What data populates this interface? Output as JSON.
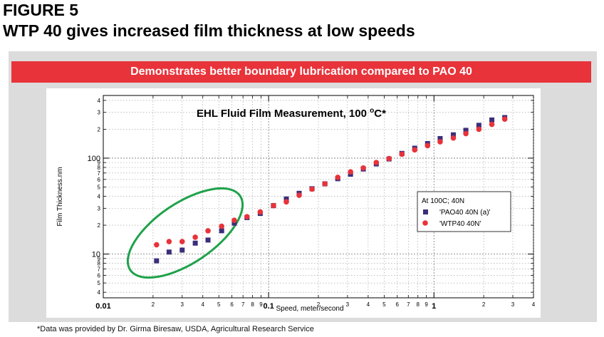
{
  "figure": {
    "label": "FIGURE 5",
    "title": "WTP 40 gives increased film thickness at low speeds",
    "banner": "Demonstrates better boundary lubrication compared to PAO 40",
    "footnote": "*Data was provided by Dr. Girma Biresaw, USDA, Agricultural Research Service"
  },
  "colors": {
    "banner_bg": "#e8333a",
    "pao_series": "#3a2f7a",
    "wtp_series": "#e8333a",
    "highlight_ellipse": "#1fa24a"
  },
  "chart_data": {
    "type": "scatter",
    "title": "EHL Fluid Film Measurement, 100 °C*",
    "title_main": "EHL Fluid Film Measurement, 100 ",
    "title_sup": "o",
    "title_end": "C*",
    "xlabel": "Speed, meter/second",
    "ylabel": "Film Thickness.nm",
    "xscale": "log",
    "yscale": "log",
    "xlim": [
      0.01,
      4
    ],
    "ylim": [
      3.5,
      450
    ],
    "x_major_ticks": [
      {
        "v": 0.01,
        "label": "0.01"
      },
      {
        "v": 0.1,
        "label": "0.1"
      },
      {
        "v": 1,
        "label": "1"
      }
    ],
    "x_minor_ticks": [
      {
        "v": 0.02,
        "label": "2"
      },
      {
        "v": 0.03,
        "label": "3"
      },
      {
        "v": 0.04,
        "label": "4"
      },
      {
        "v": 0.05,
        "label": "5"
      },
      {
        "v": 0.06,
        "label": "6"
      },
      {
        "v": 0.07,
        "label": "7"
      },
      {
        "v": 0.08,
        "label": "8"
      },
      {
        "v": 0.09,
        "label": "9"
      },
      {
        "v": 0.2,
        "label": "2"
      },
      {
        "v": 0.3,
        "label": "3"
      },
      {
        "v": 0.4,
        "label": "4"
      },
      {
        "v": 0.5,
        "label": "5"
      },
      {
        "v": 0.6,
        "label": "6"
      },
      {
        "v": 0.7,
        "label": "7"
      },
      {
        "v": 0.8,
        "label": "8"
      },
      {
        "v": 0.9,
        "label": "9"
      },
      {
        "v": 2,
        "label": "2"
      },
      {
        "v": 3,
        "label": "3"
      },
      {
        "v": 4,
        "label": "4"
      }
    ],
    "y_major_ticks": [
      {
        "v": 10,
        "label": "10"
      },
      {
        "v": 100,
        "label": "100"
      }
    ],
    "y_minor_ticks": [
      {
        "v": 4,
        "label": "4"
      },
      {
        "v": 5,
        "label": "5"
      },
      {
        "v": 6,
        "label": "6"
      },
      {
        "v": 7,
        "label": "7"
      },
      {
        "v": 8,
        "label": "8"
      },
      {
        "v": 9,
        "label": "9"
      },
      {
        "v": 20,
        "label": "2"
      },
      {
        "v": 30,
        "label": "3"
      },
      {
        "v": 40,
        "label": "4"
      },
      {
        "v": 50,
        "label": "5"
      },
      {
        "v": 60,
        "label": "6"
      },
      {
        "v": 70,
        "label": "7"
      },
      {
        "v": 80,
        "label": "8"
      },
      {
        "v": 90,
        "label": "9"
      },
      {
        "v": 200,
        "label": "2"
      },
      {
        "v": 300,
        "label": "3"
      },
      {
        "v": 400,
        "label": "4"
      }
    ],
    "legend": {
      "title": "At 100C; 40N",
      "position": "center-right"
    },
    "series": [
      {
        "name": "'PAO40 40N (a)'",
        "marker": "square",
        "color": "#3a2f7a",
        "x": [
          0.021,
          0.025,
          0.03,
          0.036,
          0.043,
          0.052,
          0.062,
          0.074,
          0.089,
          0.107,
          0.128,
          0.153,
          0.183,
          0.219,
          0.262,
          0.313,
          0.374,
          0.448,
          0.535,
          0.64,
          0.765,
          0.915,
          1.09,
          1.31,
          1.56,
          1.87,
          2.24,
          2.68
        ],
        "y": [
          8.5,
          10.5,
          11.0,
          13.0,
          14.0,
          17.5,
          21.0,
          24.0,
          26.5,
          32.0,
          37.5,
          43.0,
          48.0,
          54.0,
          61.0,
          68.0,
          77.0,
          87.0,
          98.0,
          112.0,
          127.0,
          142.0,
          160.0,
          175.0,
          195.0,
          220.0,
          250.0,
          265.0
        ]
      },
      {
        "name": "'WTP40 40N'",
        "marker": "circle",
        "color": "#e8333a",
        "x": [
          0.021,
          0.025,
          0.03,
          0.036,
          0.043,
          0.052,
          0.062,
          0.074,
          0.089,
          0.107,
          0.128,
          0.153,
          0.183,
          0.219,
          0.262,
          0.313,
          0.374,
          0.448,
          0.535,
          0.64,
          0.765,
          0.915,
          1.09,
          1.31,
          1.56,
          1.87,
          2.24,
          2.68
        ],
        "y": [
          12.5,
          13.5,
          13.5,
          15.0,
          17.5,
          19.5,
          22.5,
          24.5,
          27.5,
          32.0,
          35.0,
          41.0,
          47.5,
          54.0,
          63.0,
          72.0,
          79.0,
          90.0,
          99.0,
          110.0,
          122.0,
          135.0,
          148.0,
          162.0,
          180.0,
          200.0,
          225.0,
          255.0
        ]
      }
    ],
    "annotation": "green ellipse highlighting low-speed region"
  }
}
